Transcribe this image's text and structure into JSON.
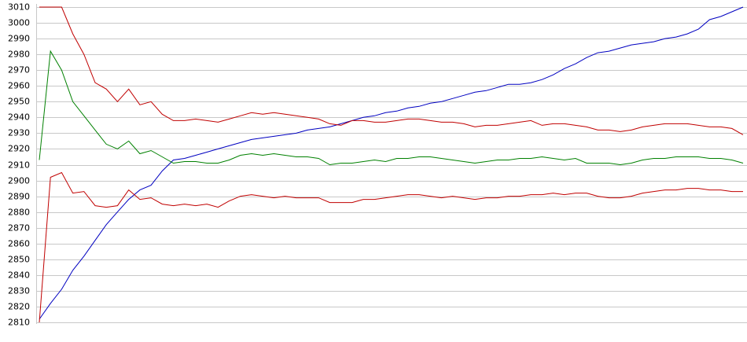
{
  "chart_data": {
    "type": "line",
    "categories": [
      null,
      null,
      null,
      null,
      null,
      null,
      null,
      null,
      null,
      null,
      null,
      null,
      null,
      null,
      null,
      null,
      null,
      null,
      null,
      null,
      null,
      null,
      null,
      null,
      null,
      null,
      null,
      null,
      null,
      null,
      null,
      null,
      null,
      null,
      null,
      null,
      null,
      null,
      null,
      null,
      null,
      null,
      null,
      null,
      null,
      null,
      null,
      null,
      null,
      null,
      null,
      null,
      null,
      null,
      null,
      null,
      null,
      null,
      null,
      null,
      null,
      null,
      null,
      null
    ],
    "series": [
      {
        "color": "#0000c0",
        "values": [
          2812,
          2822,
          2831,
          2843,
          2852,
          2862,
          2872,
          2880,
          2888,
          2894,
          2897,
          2906,
          2913,
          2914,
          2916,
          2918,
          2920,
          2922,
          2924,
          2926,
          2927,
          2928,
          2929,
          2930,
          2932,
          2933,
          2934,
          2936,
          2938,
          2940,
          2941,
          2943,
          2944,
          2946,
          2947,
          2949,
          2950,
          2952,
          2954,
          2956,
          2957,
          2959,
          2961,
          2961,
          2962,
          2964,
          2967,
          2971,
          2974,
          2978,
          2981,
          2982,
          2984,
          2986,
          2987,
          2988,
          2990,
          2991,
          2993,
          2996,
          3002,
          3004,
          3007,
          3010
        ]
      },
      {
        "color": "#008000",
        "values": [
          2913,
          2982,
          2970,
          2950,
          2941,
          2932,
          2923,
          2920,
          2925,
          2917,
          2919,
          2915,
          2911,
          2912,
          2912,
          2911,
          2911,
          2913,
          2916,
          2917,
          2916,
          2917,
          2916,
          2915,
          2915,
          2914,
          2910,
          2911,
          2911,
          2912,
          2913,
          2912,
          2914,
          2914,
          2915,
          2915,
          2914,
          2913,
          2912,
          2911,
          2912,
          2913,
          2913,
          2914,
          2914,
          2915,
          2914,
          2913,
          2914,
          2911,
          2911,
          2911,
          2910,
          2911,
          2913,
          2914,
          2914,
          2915,
          2915,
          2915,
          2914,
          2914,
          2913,
          2911
        ]
      },
      {
        "color": "#c00000",
        "values": [
          3010,
          3010,
          3010,
          2993,
          2980,
          2962,
          2958,
          2950,
          2958,
          2948,
          2950,
          2942,
          2938,
          2938,
          2939,
          2938,
          2937,
          2939,
          2941,
          2943,
          2942,
          2943,
          2942,
          2941,
          2940,
          2939,
          2936,
          2935,
          2938,
          2938,
          2937,
          2937,
          2938,
          2939,
          2939,
          2938,
          2937,
          2937,
          2936,
          2934,
          2935,
          2935,
          2936,
          2937,
          2938,
          2935,
          2936,
          2936,
          2935,
          2934,
          2932,
          2932,
          2931,
          2932,
          2934,
          2935,
          2936,
          2936,
          2936,
          2935,
          2934,
          2934,
          2933,
          2929
        ]
      },
      {
        "color": "#c00000",
        "values": [
          2810,
          2902,
          2905,
          2892,
          2893,
          2884,
          2883,
          2884,
          2894,
          2888,
          2889,
          2885,
          2884,
          2885,
          2884,
          2885,
          2883,
          2887,
          2890,
          2891,
          2890,
          2889,
          2890,
          2889,
          2889,
          2889,
          2886,
          2886,
          2886,
          2888,
          2888,
          2889,
          2890,
          2891,
          2891,
          2890,
          2889,
          2890,
          2889,
          2888,
          2889,
          2889,
          2890,
          2890,
          2891,
          2891,
          2892,
          2891,
          2892,
          2892,
          2890,
          2889,
          2889,
          2890,
          2892,
          2893,
          2894,
          2894,
          2895,
          2895,
          2894,
          2894,
          2893,
          2893
        ]
      }
    ],
    "ylim": [
      2810,
      3010
    ],
    "yticks": [
      2810,
      2820,
      2830,
      2840,
      2850,
      2860,
      2870,
      2880,
      2890,
      2900,
      2910,
      2920,
      2930,
      2940,
      2950,
      2960,
      2970,
      2980,
      2990,
      3000,
      3010
    ],
    "grid": true
  }
}
